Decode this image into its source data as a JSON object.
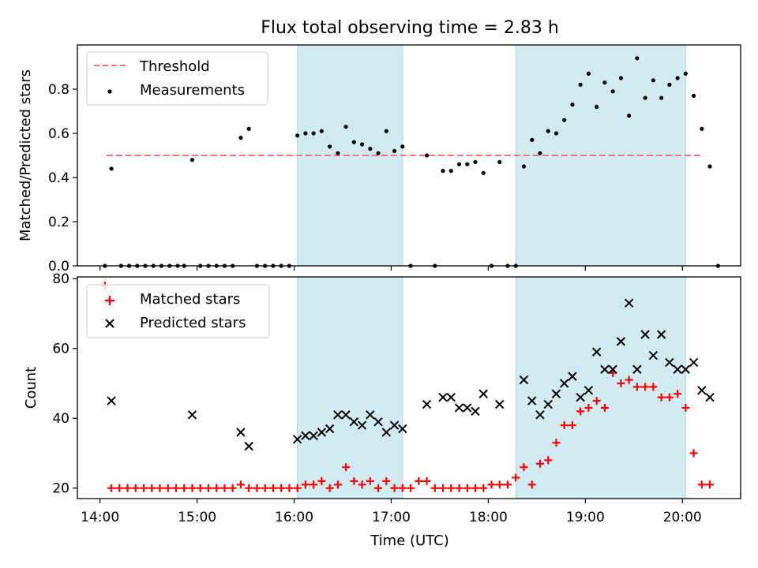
{
  "figure": {
    "title": "Flux total observing time = 2.83 h"
  },
  "colors": {
    "shade": "#add8e6",
    "threshold": "#ff7070",
    "measurement": "#000000",
    "matched": "#ff0000",
    "predicted": "#000000"
  },
  "chart_data": [
    {
      "type": "scatter",
      "title": "Flux total observing time = 2.83 h",
      "xlabel": "",
      "ylabel": "Matched/Predicted stars",
      "xlim": [
        "13:46",
        "20:36"
      ],
      "ylim": [
        0,
        1.0
      ],
      "y_ticks": [
        0.0,
        0.2,
        0.4,
        0.6,
        0.8
      ],
      "y_tick_labels": [
        "0.0",
        "0.2",
        "0.4",
        "0.6",
        "0.8"
      ],
      "legend_position": "upper-left",
      "legend": [
        "Threshold",
        "Measurements"
      ],
      "shaded_spans": [
        [
          "16:02",
          "17:07"
        ],
        [
          "18:17",
          "20:02"
        ]
      ],
      "threshold": {
        "name": "Threshold",
        "y": 0.5,
        "x_range": [
          "14:04",
          "20:13"
        ]
      },
      "series": [
        {
          "name": "Measurements",
          "points": [
            [
              "14:03",
              0.0
            ],
            [
              "14:07",
              0.44
            ],
            [
              "14:13",
              0.0
            ],
            [
              "14:18",
              0.0
            ],
            [
              "14:23",
              0.0
            ],
            [
              "14:28",
              0.0
            ],
            [
              "14:33",
              0.0
            ],
            [
              "14:38",
              0.0
            ],
            [
              "14:43",
              0.0
            ],
            [
              "14:48",
              0.0
            ],
            [
              "14:52",
              0.0
            ],
            [
              "14:57",
              0.48
            ],
            [
              "15:02",
              0.0
            ],
            [
              "15:07",
              0.0
            ],
            [
              "15:12",
              0.0
            ],
            [
              "15:17",
              0.0
            ],
            [
              "15:22",
              0.0
            ],
            [
              "15:27",
              0.58
            ],
            [
              "15:32",
              0.62
            ],
            [
              "15:37",
              0.0
            ],
            [
              "15:42",
              0.0
            ],
            [
              "15:47",
              0.0
            ],
            [
              "15:52",
              0.0
            ],
            [
              "15:57",
              0.0
            ],
            [
              "16:02",
              0.59
            ],
            [
              "16:07",
              0.6
            ],
            [
              "16:12",
              0.6
            ],
            [
              "16:17",
              0.61
            ],
            [
              "16:22",
              0.54
            ],
            [
              "16:27",
              0.51
            ],
            [
              "16:32",
              0.63
            ],
            [
              "16:37",
              0.56
            ],
            [
              "16:42",
              0.55
            ],
            [
              "16:47",
              0.53
            ],
            [
              "16:52",
              0.51
            ],
            [
              "16:57",
              0.61
            ],
            [
              "17:02",
              0.52
            ],
            [
              "17:07",
              0.54
            ],
            [
              "17:12",
              0.0
            ],
            [
              "17:22",
              0.5
            ],
            [
              "17:27",
              0.0
            ],
            [
              "17:32",
              0.43
            ],
            [
              "17:37",
              0.43
            ],
            [
              "17:42",
              0.46
            ],
            [
              "17:47",
              0.46
            ],
            [
              "17:52",
              0.47
            ],
            [
              "17:57",
              0.42
            ],
            [
              "18:02",
              0.0
            ],
            [
              "18:07",
              0.47
            ],
            [
              "18:12",
              0.0
            ],
            [
              "18:17",
              0.0
            ],
            [
              "18:22",
              0.45
            ],
            [
              "18:27",
              0.57
            ],
            [
              "18:32",
              0.51
            ],
            [
              "18:37",
              0.61
            ],
            [
              "18:42",
              0.6
            ],
            [
              "18:47",
              0.66
            ],
            [
              "18:52",
              0.73
            ],
            [
              "18:57",
              0.82
            ],
            [
              "19:02",
              0.87
            ],
            [
              "19:07",
              0.72
            ],
            [
              "19:12",
              0.83
            ],
            [
              "19:17",
              0.79
            ],
            [
              "19:22",
              0.85
            ],
            [
              "19:27",
              0.68
            ],
            [
              "19:32",
              0.94
            ],
            [
              "19:37",
              0.76
            ],
            [
              "19:42",
              0.84
            ],
            [
              "19:47",
              0.76
            ],
            [
              "19:52",
              0.82
            ],
            [
              "19:57",
              0.85
            ],
            [
              "20:02",
              0.87
            ],
            [
              "20:07",
              0.77
            ],
            [
              "20:12",
              0.62
            ],
            [
              "20:17",
              0.45
            ],
            [
              "20:22",
              0.0
            ]
          ]
        }
      ]
    },
    {
      "type": "scatter",
      "xlabel": "Time (UTC)",
      "ylabel": "Count",
      "xlim": [
        "13:46",
        "20:36"
      ],
      "ylim": [
        17,
        80.5
      ],
      "x_ticks": [
        "14:00",
        "15:00",
        "16:00",
        "17:00",
        "18:00",
        "19:00",
        "20:00"
      ],
      "y_ticks": [
        20,
        40,
        60,
        80
      ],
      "legend_position": "upper-left",
      "legend": [
        "Matched stars",
        "Predicted stars"
      ],
      "shaded_spans": [
        [
          "16:02",
          "17:07"
        ],
        [
          "18:17",
          "20:02"
        ]
      ],
      "series": [
        {
          "name": "Matched stars",
          "marker": "+",
          "points": [
            [
              "14:03",
              78
            ],
            [
              "14:07",
              20
            ],
            [
              "14:12",
              20
            ],
            [
              "14:17",
              20
            ],
            [
              "14:22",
              20
            ],
            [
              "14:27",
              20
            ],
            [
              "14:32",
              20
            ],
            [
              "14:37",
              20
            ],
            [
              "14:42",
              20
            ],
            [
              "14:47",
              20
            ],
            [
              "14:52",
              20
            ],
            [
              "14:57",
              20
            ],
            [
              "15:02",
              20
            ],
            [
              "15:07",
              20
            ],
            [
              "15:12",
              20
            ],
            [
              "15:17",
              20
            ],
            [
              "15:22",
              20
            ],
            [
              "15:27",
              21
            ],
            [
              "15:32",
              20
            ],
            [
              "15:37",
              20
            ],
            [
              "15:42",
              20
            ],
            [
              "15:47",
              20
            ],
            [
              "15:52",
              20
            ],
            [
              "15:57",
              20
            ],
            [
              "16:02",
              20
            ],
            [
              "16:07",
              21
            ],
            [
              "16:12",
              21
            ],
            [
              "16:17",
              22
            ],
            [
              "16:22",
              20
            ],
            [
              "16:27",
              21
            ],
            [
              "16:32",
              26
            ],
            [
              "16:37",
              22
            ],
            [
              "16:42",
              21
            ],
            [
              "16:47",
              22
            ],
            [
              "16:52",
              20
            ],
            [
              "16:57",
              22
            ],
            [
              "17:02",
              20
            ],
            [
              "17:07",
              20
            ],
            [
              "17:12",
              20
            ],
            [
              "17:17",
              22
            ],
            [
              "17:22",
              22
            ],
            [
              "17:27",
              20
            ],
            [
              "17:32",
              20
            ],
            [
              "17:37",
              20
            ],
            [
              "17:42",
              20
            ],
            [
              "17:47",
              20
            ],
            [
              "17:52",
              20
            ],
            [
              "17:57",
              20
            ],
            [
              "18:02",
              21
            ],
            [
              "18:07",
              21
            ],
            [
              "18:12",
              21
            ],
            [
              "18:17",
              23
            ],
            [
              "18:22",
              26
            ],
            [
              "18:27",
              21
            ],
            [
              "18:32",
              27
            ],
            [
              "18:37",
              28
            ],
            [
              "18:42",
              33
            ],
            [
              "18:47",
              38
            ],
            [
              "18:52",
              38
            ],
            [
              "18:57",
              42
            ],
            [
              "19:02",
              43
            ],
            [
              "19:07",
              45
            ],
            [
              "19:12",
              43
            ],
            [
              "19:17",
              53
            ],
            [
              "19:22",
              50
            ],
            [
              "19:27",
              51
            ],
            [
              "19:32",
              49
            ],
            [
              "19:37",
              49
            ],
            [
              "19:42",
              49
            ],
            [
              "19:47",
              46
            ],
            [
              "19:52",
              46
            ],
            [
              "19:57",
              47
            ],
            [
              "20:02",
              43
            ],
            [
              "20:07",
              30
            ],
            [
              "20:12",
              21
            ],
            [
              "20:17",
              21
            ]
          ]
        },
        {
          "name": "Predicted stars",
          "marker": "x",
          "points": [
            [
              "14:07",
              45
            ],
            [
              "14:57",
              41
            ],
            [
              "15:27",
              36
            ],
            [
              "15:32",
              32
            ],
            [
              "16:02",
              34
            ],
            [
              "16:07",
              35
            ],
            [
              "16:12",
              35
            ],
            [
              "16:17",
              36
            ],
            [
              "16:22",
              37
            ],
            [
              "16:27",
              41
            ],
            [
              "16:32",
              41
            ],
            [
              "16:37",
              39
            ],
            [
              "16:42",
              38
            ],
            [
              "16:47",
              41
            ],
            [
              "16:52",
              39
            ],
            [
              "16:57",
              36
            ],
            [
              "17:02",
              38
            ],
            [
              "17:07",
              37
            ],
            [
              "17:22",
              44
            ],
            [
              "17:32",
              46
            ],
            [
              "17:37",
              46
            ],
            [
              "17:42",
              43
            ],
            [
              "17:47",
              43
            ],
            [
              "17:52",
              42
            ],
            [
              "17:57",
              47
            ],
            [
              "18:07",
              44
            ],
            [
              "18:22",
              51
            ],
            [
              "18:27",
              45
            ],
            [
              "18:32",
              41
            ],
            [
              "18:37",
              44
            ],
            [
              "18:42",
              47
            ],
            [
              "18:47",
              50
            ],
            [
              "18:52",
              52
            ],
            [
              "18:57",
              46
            ],
            [
              "19:02",
              48
            ],
            [
              "19:07",
              59
            ],
            [
              "19:12",
              54
            ],
            [
              "19:17",
              54
            ],
            [
              "19:22",
              62
            ],
            [
              "19:27",
              73
            ],
            [
              "19:32",
              54
            ],
            [
              "19:37",
              64
            ],
            [
              "19:42",
              58
            ],
            [
              "19:47",
              64
            ],
            [
              "19:52",
              56
            ],
            [
              "19:57",
              54
            ],
            [
              "20:02",
              54
            ],
            [
              "20:07",
              56
            ],
            [
              "20:12",
              48
            ],
            [
              "20:17",
              46
            ]
          ]
        }
      ]
    }
  ]
}
